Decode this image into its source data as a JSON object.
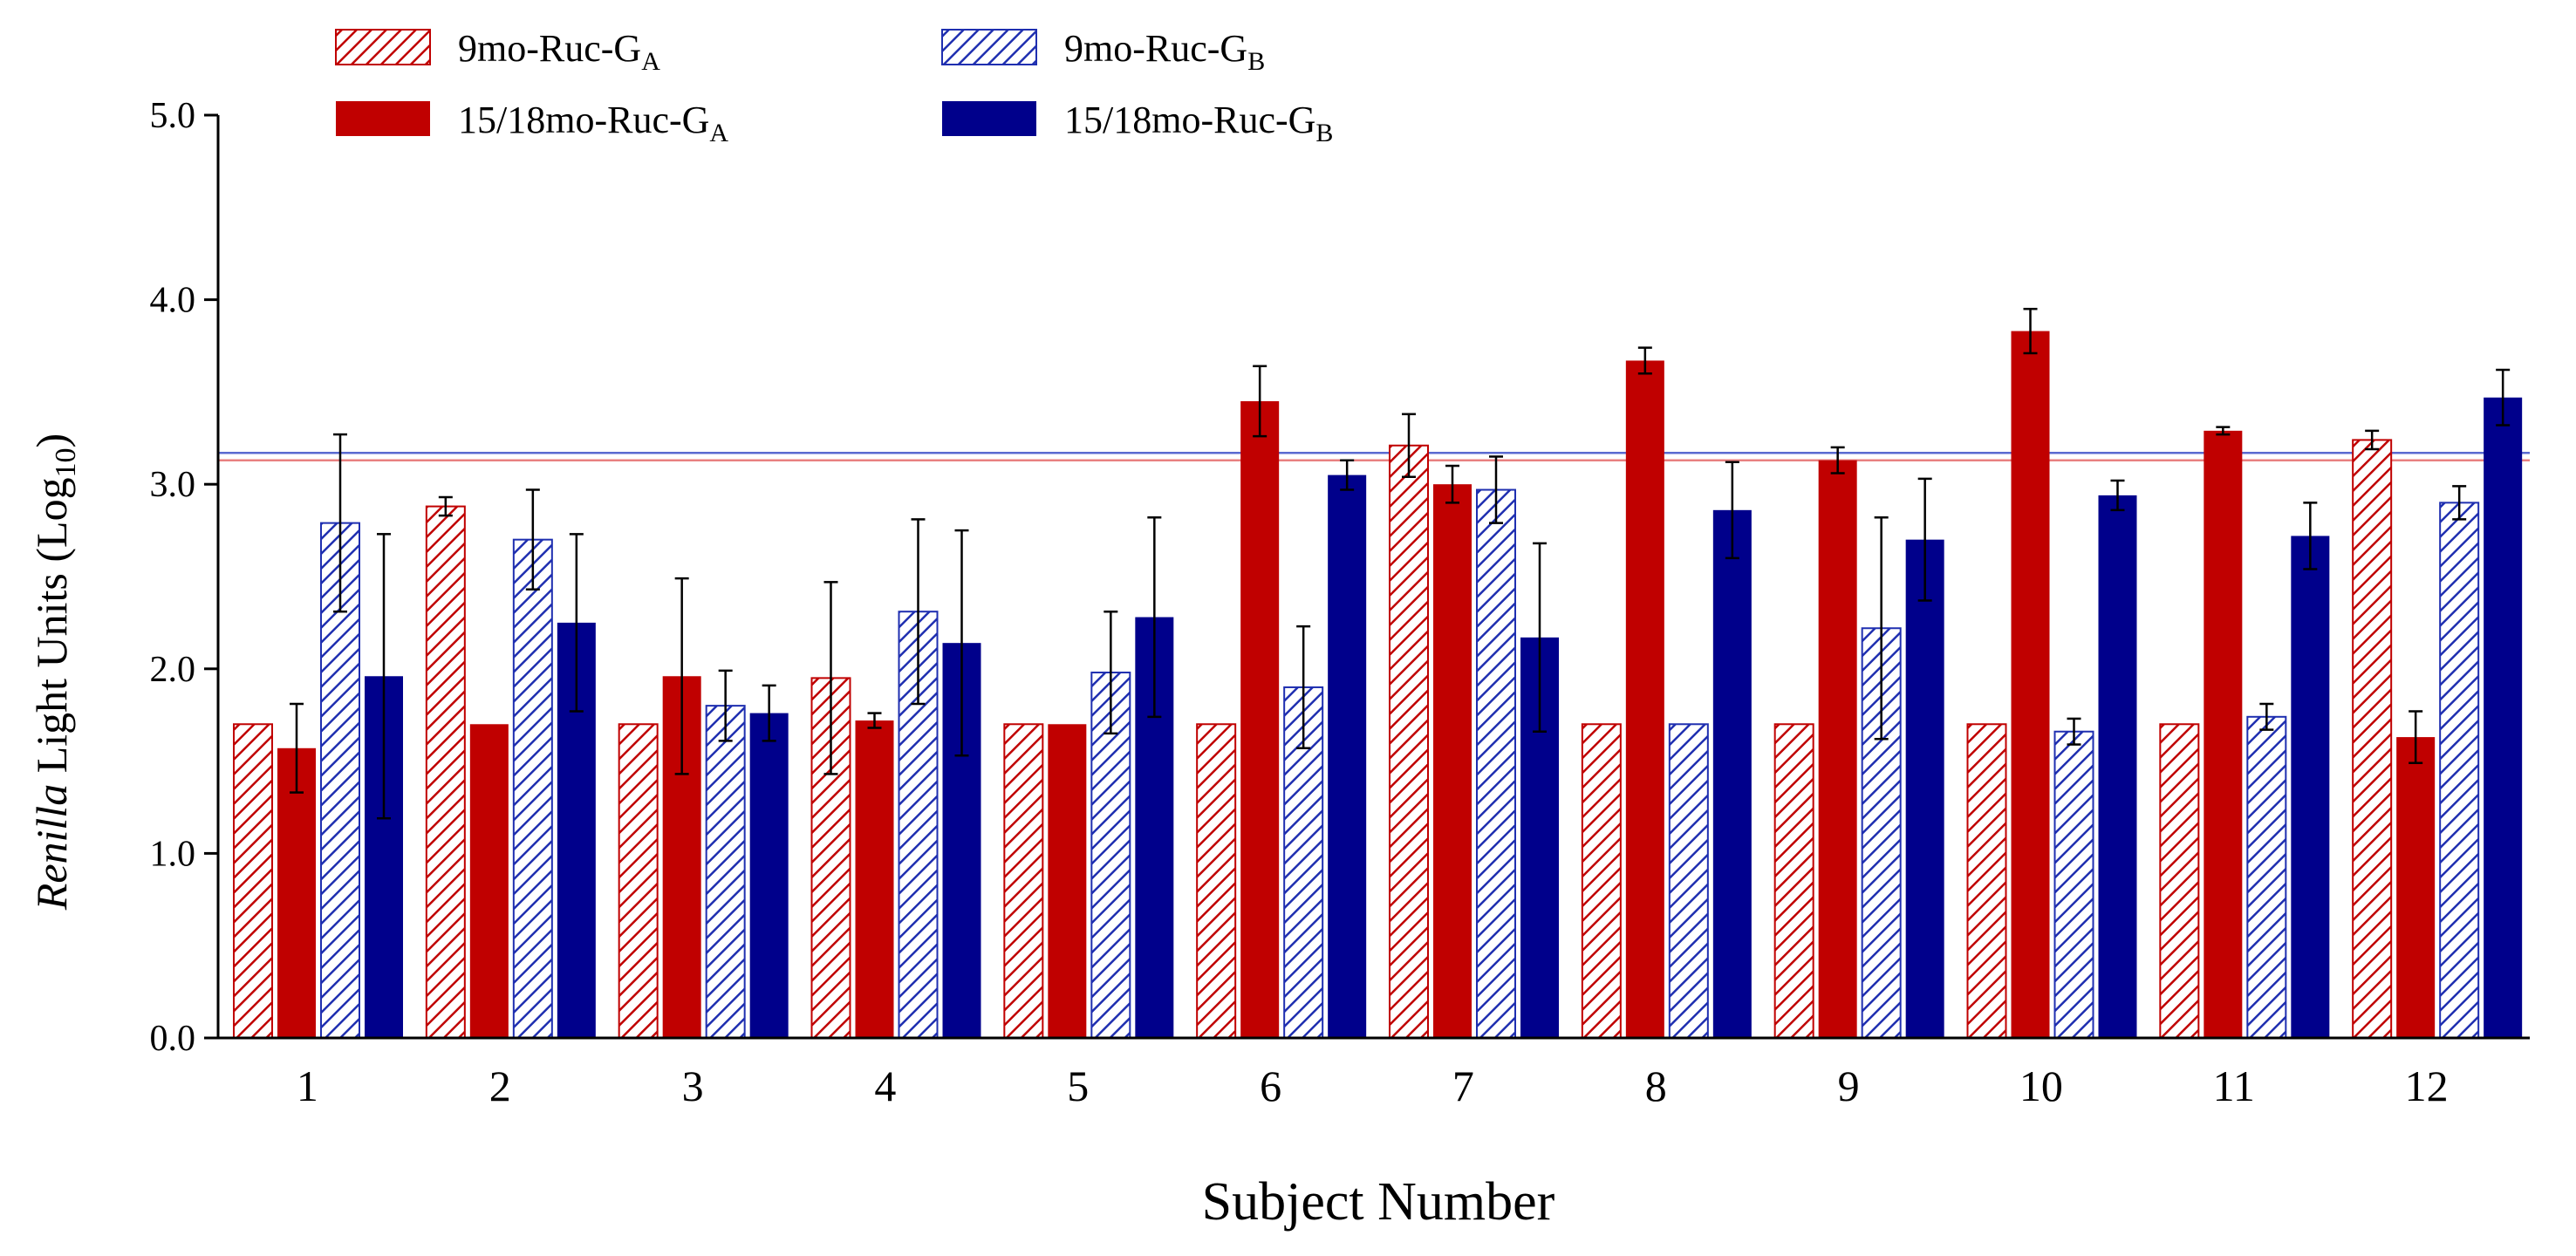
{
  "chart_data": {
    "type": "bar",
    "title": "",
    "xlabel": "Subject Number",
    "ylabel": {
      "italic": "Renilla",
      "rest": " Light Units (Log",
      "sub": "10",
      "close": ")"
    },
    "ylim": [
      0,
      5
    ],
    "yticks": [
      "0.0",
      "1.0",
      "2.0",
      "3.0",
      "4.0",
      "5.0"
    ],
    "categories": [
      "1",
      "2",
      "3",
      "4",
      "5",
      "6",
      "7",
      "8",
      "9",
      "10",
      "11",
      "12"
    ],
    "series": [
      {
        "name": "9mo-Ruc-G",
        "sub": "A",
        "color": "#c00000",
        "pattern": "hatched",
        "values": [
          1.7,
          2.88,
          1.7,
          1.95,
          1.7,
          1.7,
          3.21,
          1.7,
          1.7,
          1.7,
          1.7,
          3.24
        ],
        "errors": [
          null,
          0.05,
          null,
          0.52,
          null,
          null,
          0.17,
          null,
          null,
          null,
          null,
          0.05
        ]
      },
      {
        "name": "15/18mo-Ruc-G",
        "sub": "A",
        "color": "#c00000",
        "pattern": "solid",
        "values": [
          1.57,
          1.7,
          1.96,
          1.72,
          1.7,
          3.45,
          3.0,
          3.67,
          3.13,
          3.83,
          3.29,
          1.63
        ],
        "errors": [
          0.24,
          null,
          0.53,
          0.04,
          null,
          0.19,
          0.1,
          0.07,
          0.07,
          0.12,
          0.02,
          0.14
        ]
      },
      {
        "name": "9mo-Ruc-G",
        "sub": "B",
        "color": "#1f2fb0",
        "pattern": "hatched",
        "values": [
          2.79,
          2.7,
          1.8,
          2.31,
          1.98,
          1.9,
          2.97,
          1.7,
          2.22,
          1.66,
          1.74,
          2.9
        ],
        "errors": [
          0.48,
          0.27,
          0.19,
          0.5,
          0.33,
          0.33,
          0.18,
          null,
          0.6,
          0.07,
          0.07,
          0.09
        ]
      },
      {
        "name": "15/18mo-Ruc-G",
        "sub": "B",
        "color": "#00008b",
        "pattern": "solid",
        "values": [
          1.96,
          2.25,
          1.76,
          2.14,
          2.28,
          3.05,
          2.17,
          2.86,
          2.7,
          2.94,
          2.72,
          3.47
        ],
        "errors": [
          0.77,
          0.48,
          0.15,
          0.61,
          0.54,
          0.08,
          0.51,
          0.26,
          0.33,
          0.08,
          0.18,
          0.15
        ]
      }
    ],
    "reference_lines": [
      {
        "value": 3.13,
        "color": "#e88080"
      },
      {
        "value": 3.17,
        "color": "#5a6ad0"
      }
    ],
    "legend": "top-left"
  }
}
